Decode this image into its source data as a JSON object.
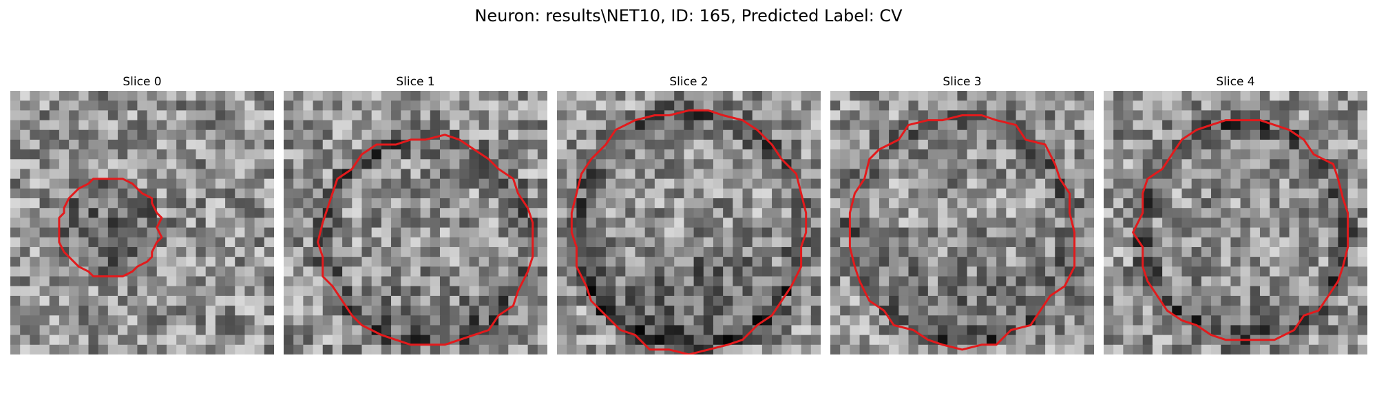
{
  "figure": {
    "title": "Neuron: results\\NET10, ID: 165, Predicted Label: CV",
    "contour_color": "#e31a1c"
  },
  "panels": [
    {
      "title": "Slice 0"
    },
    {
      "title": "Slice 1"
    },
    {
      "title": "Slice 2"
    },
    {
      "title": "Slice 3"
    },
    {
      "title": "Slice 4"
    }
  ]
}
